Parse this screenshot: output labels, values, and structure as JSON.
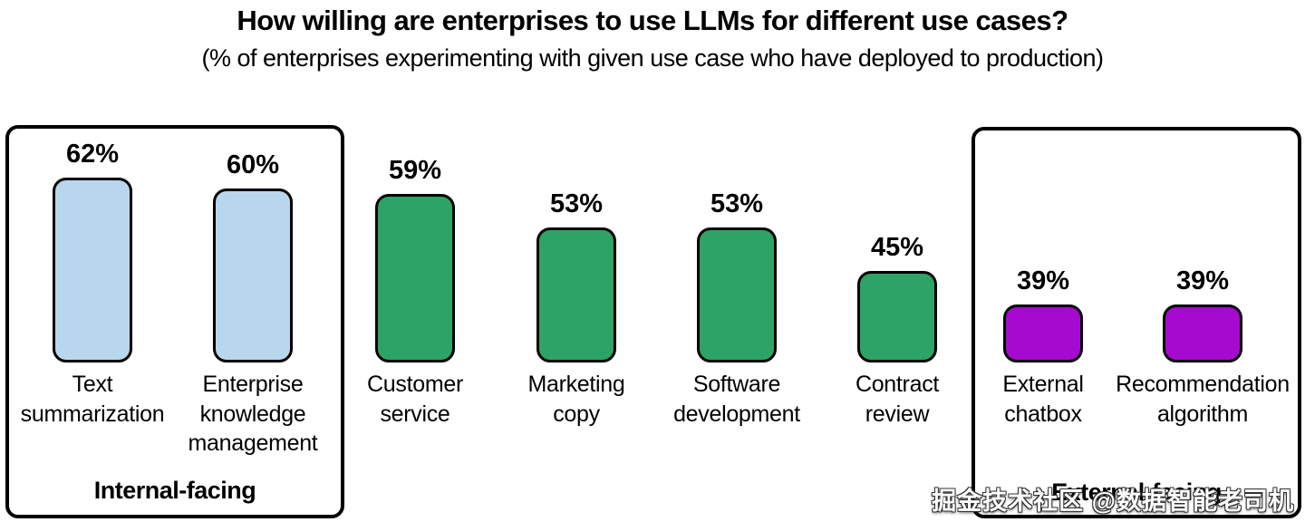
{
  "title": "How willing are enterprises to use LLMs for different use cases?",
  "subtitle": "(% of enterprises experimenting with given use case who have deployed to production)",
  "watermark": "掘金技术社区 @数据智能老司机",
  "groups": {
    "internal": {
      "label": "Internal-facing"
    },
    "external": {
      "label": "External-facing"
    }
  },
  "colors": {
    "internal_bar": "#b9d7ec",
    "default_bar": "#2da465",
    "external_bar": "#a50bce",
    "bar_border": "#000000"
  },
  "chart_data": {
    "type": "bar",
    "title": "How willing are enterprises to use LLMs for different use cases?",
    "subtitle": "(% of enterprises experimenting with given use case who have deployed to production)",
    "unit": "%",
    "categories": [
      "Text summarization",
      "Enterprise knowledge management",
      "Customer service",
      "Marketing copy",
      "Software development",
      "Contract review",
      "External chatbox",
      "Recommendation algorithm"
    ],
    "values": [
      62,
      60,
      59,
      53,
      53,
      45,
      39,
      39
    ],
    "legend": "none",
    "grid": false,
    "axes": "none",
    "bars": [
      {
        "label": "Text\nsummarization",
        "value": 62,
        "group": "internal"
      },
      {
        "label": "Enterprise\nknowledge\nmanagement",
        "value": 60,
        "group": "internal"
      },
      {
        "label": "Customer\nservice",
        "value": 59,
        "group": "default"
      },
      {
        "label": "Marketing\ncopy",
        "value": 53,
        "group": "default"
      },
      {
        "label": "Software\ndevelopment",
        "value": 53,
        "group": "default"
      },
      {
        "label": "Contract\nreview",
        "value": 45,
        "group": "default"
      },
      {
        "label": "External\nchatbox",
        "value": 39,
        "group": "external"
      },
      {
        "label": "Recommendation\nalgorithm",
        "value": 39,
        "group": "external"
      }
    ]
  }
}
